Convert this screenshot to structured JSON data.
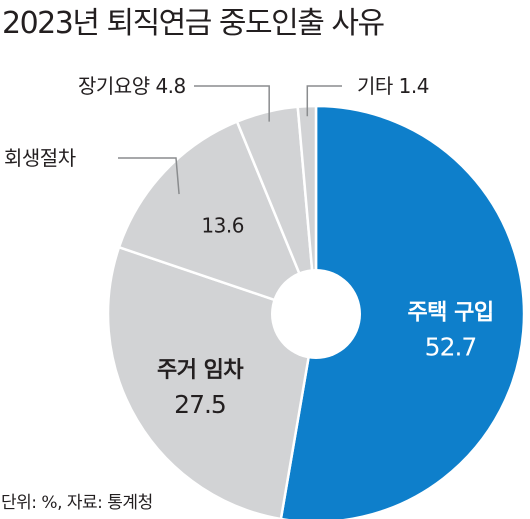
{
  "chart_data": {
    "type": "pie",
    "title": "2023년 퇴직연금 중도인출 사유",
    "source": "단위: %, 자료: 통계청",
    "slices": [
      {
        "label": "주택 구입",
        "value": 52.7,
        "value_text": "52.7",
        "color": "#0e7fcb",
        "text_color": "#ffffff",
        "label_mode": "inside"
      },
      {
        "label": "주거 임차",
        "value": 27.5,
        "value_text": "27.5",
        "color": "#d2d3d5",
        "text_color": "#231f20",
        "label_mode": "inside"
      },
      {
        "label": "회생절차",
        "value": 13.6,
        "value_text": "13.6",
        "color": "#d2d3d5",
        "text_color": "#231f20",
        "label_mode": "callout-value-inside"
      },
      {
        "label": "장기요양",
        "value": 4.8,
        "value_text": "4.8",
        "color": "#d2d3d5",
        "text_color": "#231f20",
        "label_mode": "callout"
      },
      {
        "label": "기타",
        "value": 1.4,
        "value_text": "1.4",
        "color": "#d2d3d5",
        "text_color": "#231f20",
        "label_mode": "callout"
      }
    ],
    "style": "donut",
    "slice_border_color": "#ffffff",
    "leader_line_color": "#8a8c8e"
  }
}
